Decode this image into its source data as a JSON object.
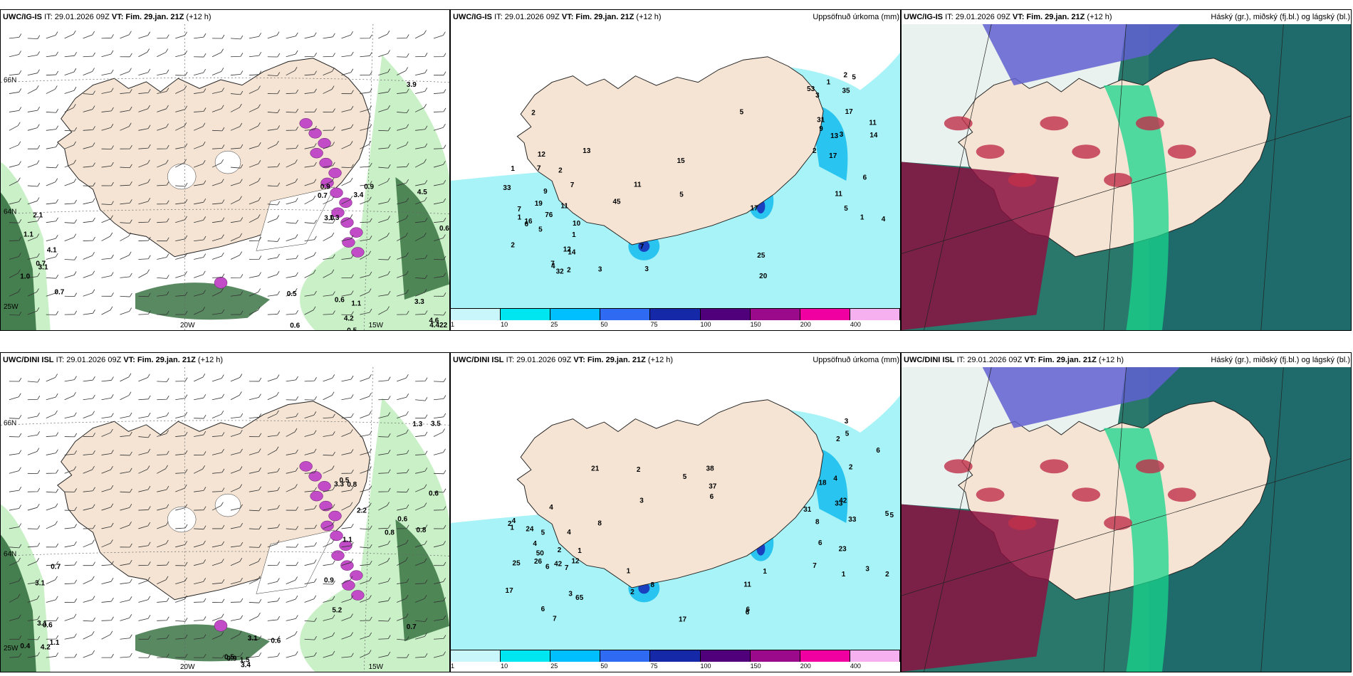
{
  "panels": [
    {
      "model": "UWC/IG-IS",
      "it": "IT: 29.01.2026 09Z",
      "vt": "VT: Fim. 29.jan. 21Z",
      "lead": "(+12 h)",
      "title_right": ""
    },
    {
      "model": "UWC/IG-IS",
      "it": "IT: 29.01.2026 09Z",
      "vt": "VT: Fim. 29.jan. 21Z",
      "lead": "(+12 h)",
      "title_right": "Uppsöfnuð úrkoma (mm)"
    },
    {
      "model": "UWC/IG-IS",
      "it": "IT: 29.01.2026 09Z",
      "vt": "VT: Fim. 29.jan. 21Z",
      "lead": "(+12 h)",
      "title_right": "Háský (gr.), miðský (fj.bl.) og lágský (bl.)"
    },
    {
      "model": "UWC/DINI ISL",
      "it": "IT: 29.01.2026 09Z",
      "vt": "VT: Fim. 29.jan. 21Z",
      "lead": "(+12 h)",
      "title_right": ""
    },
    {
      "model": "UWC/DINI ISL",
      "it": "IT: 29.01.2026 09Z",
      "vt": "VT: Fim. 29.jan. 21Z",
      "lead": "(+12 h)",
      "title_right": "Uppsöfnuð úrkoma (mm)"
    },
    {
      "model": "UWC/DINI ISL",
      "it": "IT: 29.01.2026 09Z",
      "vt": "VT: Fim. 29.jan. 21Z",
      "lead": "(+12 h)",
      "title_right": "Háský (gr.), miðský (fj.bl.) og lágský (bl.)"
    }
  ],
  "grid_labels": {
    "lat66": "66N",
    "lat64": "64N",
    "lon25": "25W",
    "lon20": "20W",
    "lon15": "15W"
  },
  "colorbar": {
    "ticks": [
      "1",
      "10",
      "25",
      "50",
      "75",
      "100",
      "150",
      "200",
      "400"
    ],
    "colors": [
      "#c8f6fa",
      "#00e6f0",
      "#00bfff",
      "#2e6bf2",
      "#1428a8",
      "#50007a",
      "#9a0a8a",
      "#f000a0",
      "#f6b0f0"
    ]
  },
  "colors": {
    "land": "#f5e4d3",
    "snow": "#ffffff",
    "precip_light": "#a8f3f7",
    "precip_mid": "#29c4ef",
    "precip_heavy": "#1a3fbf",
    "green_light": "#c9f0c6",
    "green_dark": "#2f6b3a",
    "magenta": "#c24cc8",
    "cloud_high": "#1f6a6a",
    "cloud_mid": "#6060d0",
    "cloud_low": "#8a1040"
  },
  "values": {
    "wind_top": [
      "0.7",
      "0.6",
      "0.6",
      "0.9",
      "2.1",
      "4.6",
      "1.1",
      "3.0",
      "3.1",
      "3.3",
      "0.5",
      "3.4",
      "4.1",
      "4.422",
      "0.6",
      "0.9",
      "1.0",
      "3.9",
      "0.5",
      "0.7",
      "0.7",
      "4.5",
      "4.2",
      "1.3",
      "1.1"
    ],
    "precip_top": [
      "1",
      "1",
      "5",
      "9",
      "1",
      "1",
      "3",
      "3",
      "2",
      "15",
      "35",
      "2",
      "5",
      "6",
      "7",
      "11",
      "17",
      "19",
      "25",
      "31",
      "33",
      "45",
      "53",
      "32",
      "3",
      "2",
      "4",
      "2",
      "14",
      "7",
      "20",
      "17",
      "14",
      "12",
      "11",
      "11",
      "76",
      "13",
      "16",
      "13",
      "5",
      "10",
      "17",
      "9",
      "12",
      "7",
      "11",
      "6",
      "5",
      "5",
      "7",
      "7",
      "4",
      "2",
      "2",
      "3",
      "1"
    ],
    "wind_bottom": [
      "0.4",
      "3.5",
      "3.1",
      "2.2",
      "3.1",
      "0.6",
      "1.5",
      "0.9",
      "0.7",
      "0.6",
      "0.5",
      "0.5",
      "0.6",
      "0.8",
      "0.7",
      "3.3",
      "1.1",
      "0.8",
      "3.4",
      "5.2",
      "4.2",
      "1.3",
      "0.6",
      "1.1",
      "3.1",
      "0.7",
      "0.9",
      "0.8"
    ],
    "precip_bottom": [
      "2",
      "2",
      "12",
      "31",
      "33",
      "42",
      "37",
      "42",
      "50",
      "11",
      "5",
      "6",
      "6",
      "5",
      "24",
      "38",
      "18",
      "17",
      "26",
      "23",
      "25",
      "21",
      "33",
      "65",
      "17",
      "6",
      "7",
      "8",
      "3",
      "2",
      "6",
      "3",
      "4",
      "1",
      "1",
      "2",
      "2",
      "2",
      "1",
      "1",
      "4",
      "3",
      "4",
      "5",
      "5",
      "8",
      "7",
      "6",
      "5",
      "8",
      "4",
      "6",
      "2",
      "4",
      "3",
      "6",
      "7",
      "1"
    ]
  }
}
